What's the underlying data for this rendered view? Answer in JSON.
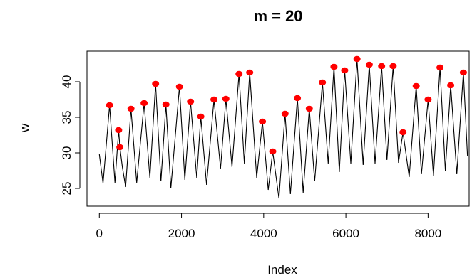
{
  "chart_data": {
    "type": "line",
    "title": "m = 20",
    "xlabel": "Index",
    "ylabel": "w",
    "xlim": [
      -300,
      9000
    ],
    "ylim": [
      22.5,
      44.3
    ],
    "x_ticks": [
      0,
      2000,
      4000,
      6000,
      8000
    ],
    "x_tick_labels": [
      "0",
      "2000",
      "4000",
      "6000",
      "8000"
    ],
    "y_ticks": [
      25,
      30,
      35,
      40
    ],
    "y_tick_labels": [
      "25",
      "30",
      "35",
      "40"
    ],
    "grid": false,
    "legend": "none",
    "series": [
      {
        "type": "line",
        "color": "#000000",
        "x": [
          0,
          90,
          250,
          380,
          470,
          500,
          560,
          640,
          770,
          910,
          1090,
          1230,
          1370,
          1500,
          1620,
          1740,
          1950,
          2080,
          2220,
          2370,
          2470,
          2610,
          2790,
          2950,
          3080,
          3230,
          3400,
          3530,
          3660,
          3830,
          3970,
          4110,
          4220,
          4370,
          4520,
          4650,
          4820,
          4960,
          5110,
          5240,
          5430,
          5570,
          5710,
          5840,
          5970,
          6120,
          6270,
          6420,
          6570,
          6710,
          6870,
          7000,
          7150,
          7280,
          7390,
          7540,
          7710,
          7840,
          8000,
          8130,
          8290,
          8420,
          8550,
          8700,
          8860,
          8960
        ],
        "y": [
          29.8,
          25.7,
          36.7,
          25.8,
          33.2,
          30.8,
          28.0,
          25.2,
          36.2,
          25.8,
          37.0,
          26.5,
          39.7,
          26.0,
          36.8,
          25.0,
          39.3,
          26.2,
          37.2,
          26.5,
          35.1,
          25.5,
          37.5,
          27.8,
          37.6,
          28.0,
          41.1,
          28.5,
          41.3,
          26.5,
          34.4,
          24.8,
          30.2,
          23.6,
          35.5,
          24.2,
          37.7,
          24.4,
          36.2,
          26.0,
          39.9,
          28.5,
          42.1,
          27.3,
          41.6,
          28.5,
          43.2,
          28.3,
          42.4,
          28.5,
          42.2,
          29.0,
          42.2,
          28.6,
          32.9,
          26.6,
          39.4,
          27.0,
          37.5,
          26.8,
          42.0,
          27.5,
          39.5,
          27.0,
          41.3,
          29.5
        ]
      },
      {
        "type": "scatter",
        "name": "peaks",
        "color": "#ff0000",
        "x": [
          250,
          470,
          500,
          770,
          1090,
          1370,
          1620,
          1950,
          2220,
          2470,
          2790,
          3080,
          3400,
          3660,
          3970,
          4220,
          4520,
          4820,
          5110,
          5430,
          5710,
          5970,
          6270,
          6570,
          6870,
          7150,
          7390,
          7710,
          8000,
          8290,
          8550,
          8860
        ],
        "y": [
          36.7,
          33.2,
          30.8,
          36.2,
          37.0,
          39.7,
          36.8,
          39.3,
          37.2,
          35.1,
          37.5,
          37.6,
          41.1,
          41.3,
          34.4,
          30.2,
          35.5,
          37.7,
          36.2,
          39.9,
          42.1,
          41.6,
          43.2,
          42.4,
          42.2,
          42.2,
          32.9,
          39.4,
          37.5,
          42.0,
          39.5,
          41.3
        ]
      }
    ]
  }
}
